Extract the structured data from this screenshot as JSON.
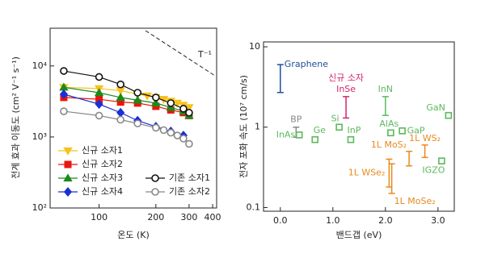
{
  "chart_data": [
    {
      "type": "line",
      "x_label": "온도 (K)",
      "y_label": "전계 효과 이동도 (cm² V⁻¹ s⁻¹)",
      "log_x": true,
      "log_y": true,
      "xlim": [
        55,
        420
      ],
      "ylim": [
        100,
        34000
      ],
      "xticks": [
        100,
        200,
        300,
        400
      ],
      "yticks": [
        {
          "value": 100,
          "label": "10²"
        },
        {
          "value": 1000,
          "label": "10³"
        },
        {
          "value": 10000,
          "label": "10⁴"
        }
      ],
      "annotation": "T⁻¹",
      "series": [
        {
          "name": "신규 소자1",
          "color": "#f7c21b",
          "marker": "triangle-down",
          "filled": true,
          "x": [
            65,
            100,
            130,
            160,
            180,
            200,
            220,
            240,
            260,
            280,
            300
          ],
          "values": [
            5000,
            4800,
            4500,
            4000,
            3800,
            3600,
            3400,
            3200,
            3000,
            2800,
            2600
          ]
        },
        {
          "name": "신규 소자2",
          "color": "#e8160c",
          "marker": "square",
          "filled": true,
          "x": [
            65,
            100,
            130,
            160,
            200,
            240,
            280,
            300
          ],
          "values": [
            3600,
            3400,
            3100,
            3000,
            2700,
            2400,
            2200,
            2000
          ]
        },
        {
          "name": "신규 소자3",
          "color": "#1a8a1a",
          "marker": "triangle-up",
          "filled": true,
          "x": [
            65,
            100,
            130,
            160,
            200,
            240,
            280,
            300
          ],
          "values": [
            5000,
            4200,
            3600,
            3300,
            3000,
            2600,
            2300,
            2000
          ]
        },
        {
          "name": "신규 소자4",
          "color": "#1a2fd6",
          "marker": "diamond",
          "filled": true,
          "x": [
            65,
            100,
            130,
            160,
            200,
            240,
            280
          ],
          "values": [
            4000,
            2900,
            2200,
            1700,
            1400,
            1200,
            1050
          ]
        },
        {
          "name": "기존 소자1",
          "color": "#111111",
          "marker": "circle",
          "filled": false,
          "x": [
            65,
            100,
            130,
            160,
            200,
            240,
            280,
            300
          ],
          "values": [
            8500,
            7000,
            5500,
            4200,
            3600,
            3000,
            2500,
            2200
          ]
        },
        {
          "name": "기존 소자2",
          "color": "#888888",
          "marker": "circle",
          "filled": false,
          "x": [
            65,
            100,
            130,
            160,
            200,
            220,
            240,
            260,
            280,
            300
          ],
          "values": [
            2300,
            2000,
            1750,
            1550,
            1350,
            1250,
            1150,
            1050,
            950,
            800
          ]
        }
      ]
    },
    {
      "type": "scatter",
      "x_label": "밴드갭 (eV)",
      "y_label": "전자 포화 속도 (10⁷ cm/s)",
      "log_y": true,
      "xlim": [
        -0.32,
        3.31
      ],
      "ylim": [
        0.09,
        11.5
      ],
      "xticks": [
        {
          "value": 0,
          "label": "0.0"
        },
        {
          "value": 1,
          "label": "1.0"
        },
        {
          "value": 2,
          "label": "2.0"
        },
        {
          "value": 3,
          "label": "3.0"
        }
      ],
      "yticks": [
        0.1,
        1,
        10
      ],
      "annotation": "신규 소자",
      "ranges": [
        {
          "name": "Graphene",
          "color": "#1f4e9a",
          "x": 0,
          "low": 2.7,
          "high": 6
        },
        {
          "name": "BP",
          "color": "#888888",
          "x": 0.3,
          "low": 0.75,
          "high": 1.0
        },
        {
          "name": "InSe",
          "color": "#d4246b",
          "x": 1.25,
          "low": 1.3,
          "high": 2.4
        },
        {
          "name": "InN",
          "color": "#5cb85c",
          "x": 2.0,
          "low": 1.4,
          "high": 2.4
        },
        {
          "name": "1L WSe₂",
          "color": "#e8891d",
          "x": 2.07,
          "low": 0.18,
          "high": 0.4
        },
        {
          "name": "1L MoSe₂",
          "color": "#e8891d",
          "x": 2.12,
          "low": 0.15,
          "high": 0.35
        },
        {
          "name": "1L MoS₂",
          "color": "#e8891d",
          "x": 2.45,
          "low": 0.33,
          "high": 0.5
        },
        {
          "name": "1L WS₂",
          "color": "#e8891d",
          "x": 2.75,
          "low": 0.42,
          "high": 0.6
        }
      ],
      "points": [
        {
          "name": "InAs",
          "color": "#5cb85c",
          "x": 0.36,
          "y": 0.8
        },
        {
          "name": "Ge",
          "color": "#5cb85c",
          "x": 0.66,
          "y": 0.7
        },
        {
          "name": "Si",
          "color": "#5cb85c",
          "x": 1.12,
          "y": 1.0
        },
        {
          "name": "InP",
          "color": "#5cb85c",
          "x": 1.34,
          "y": 0.7
        },
        {
          "name": "AlAs",
          "color": "#5cb85c",
          "x": 2.1,
          "y": 0.85
        },
        {
          "name": "GaP",
          "color": "#5cb85c",
          "x": 2.32,
          "y": 0.9
        },
        {
          "name": "GaN",
          "color": "#5cb85c",
          "x": 3.2,
          "y": 1.4
        },
        {
          "name": "IGZO",
          "color": "#5cb85c",
          "x": 3.07,
          "y": 0.38
        }
      ]
    }
  ]
}
